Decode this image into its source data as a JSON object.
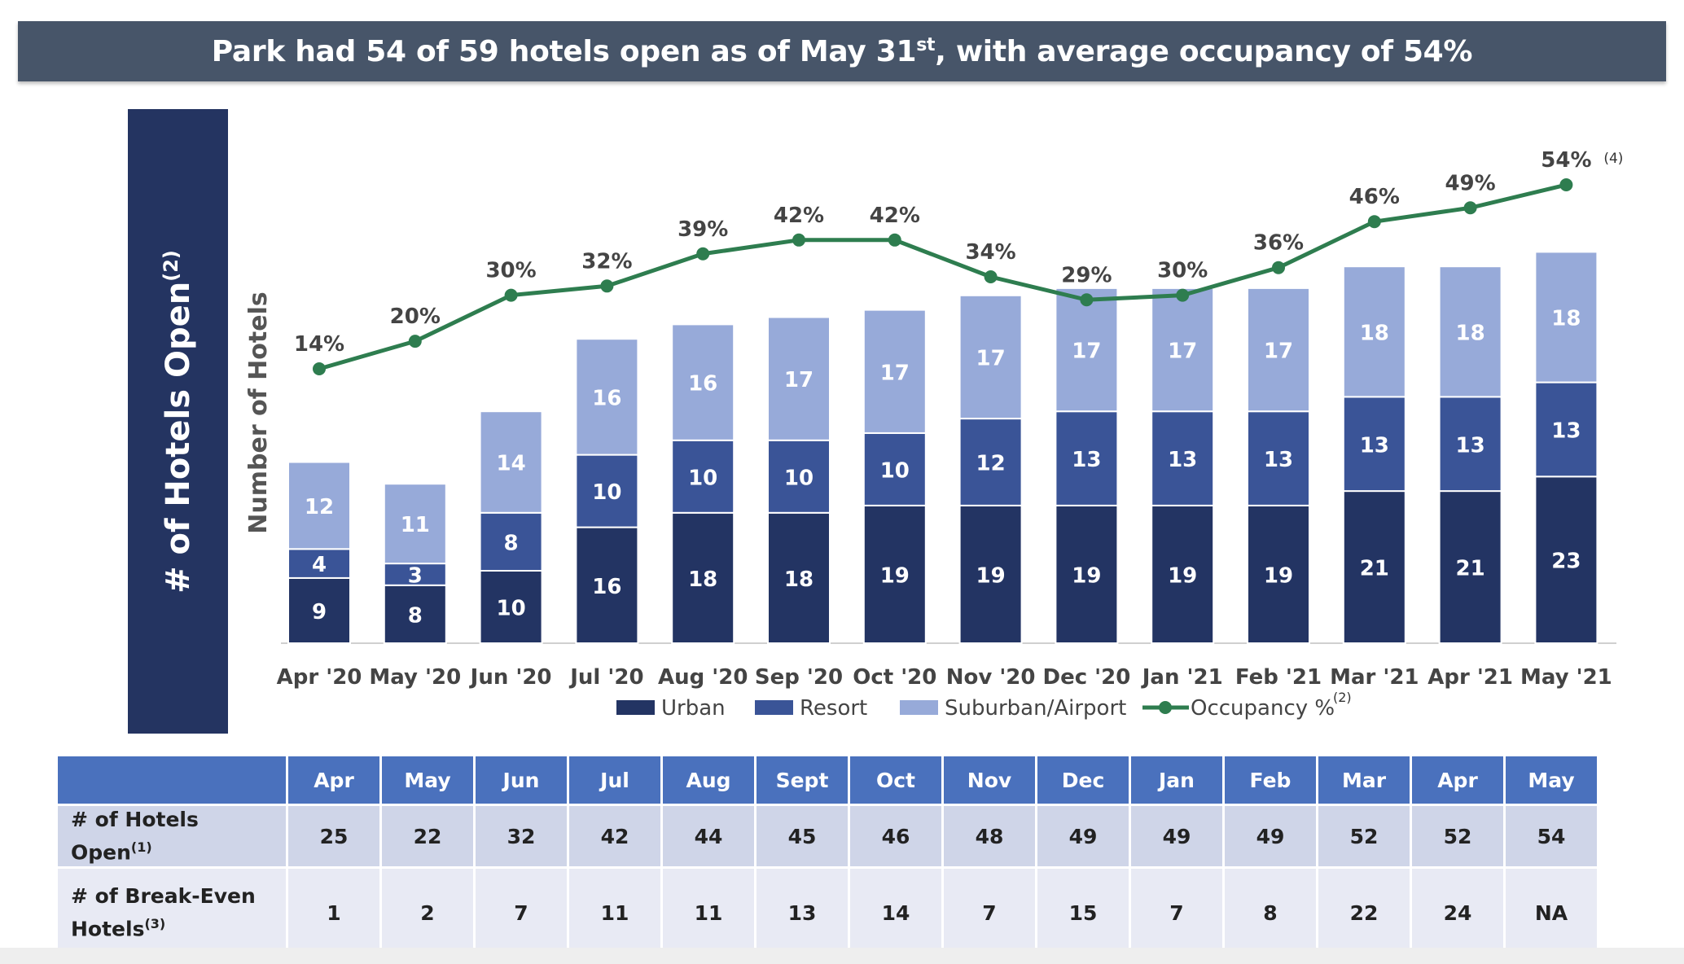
{
  "title": {
    "main": "Park had 54 of 59 hotels open as of May 31",
    "sup": "st",
    "rest": ", with average occupancy of 54%"
  },
  "side_label": {
    "text": "# of Hotels Open",
    "sup": "(2)"
  },
  "chart_data": {
    "type": "bar",
    "stacked": true,
    "ylabel": "Number of Hotels",
    "categories": [
      "Apr '20",
      "May '20",
      "Jun '20",
      "Jul '20",
      "Aug '20",
      "Sep '20",
      "Oct '20",
      "Nov '20",
      "Dec '20",
      "Jan '21",
      "Feb '21",
      "Mar '21",
      "Apr '21",
      "May '21"
    ],
    "series": [
      {
        "name": "Urban",
        "color": "#233463",
        "values": [
          9,
          8,
          10,
          16,
          18,
          18,
          19,
          19,
          19,
          19,
          19,
          21,
          21,
          23
        ]
      },
      {
        "name": "Resort",
        "color": "#3a5497",
        "values": [
          4,
          3,
          8,
          10,
          10,
          10,
          10,
          12,
          13,
          13,
          13,
          13,
          13,
          13
        ]
      },
      {
        "name": "Suburban/Airport",
        "color": "#97aad9",
        "values": [
          12,
          11,
          14,
          16,
          16,
          17,
          17,
          17,
          17,
          17,
          17,
          18,
          18,
          18
        ]
      }
    ],
    "line": {
      "name": "Occupancy %",
      "name_sup": "(2)",
      "color": "#2e7d4f",
      "values": [
        14,
        20,
        30,
        32,
        39,
        42,
        42,
        34,
        29,
        30,
        36,
        46,
        49,
        54
      ],
      "labels": [
        "14%",
        "20%",
        "30%",
        "32%",
        "39%",
        "42%",
        "42%",
        "34%",
        "29%",
        "30%",
        "36%",
        "46%",
        "49%",
        "54%"
      ],
      "last_note": "(4)"
    },
    "legend_position": "bottom",
    "grid": false
  },
  "table": {
    "headers": [
      "Apr",
      "May",
      "Jun",
      "Jul",
      "Aug",
      "Sept",
      "Oct",
      "Nov",
      "Dec",
      "Jan",
      "Feb",
      "Mar",
      "Apr",
      "May"
    ],
    "rows": [
      {
        "label": "# of Hotels Open",
        "label_sup": "(1)",
        "values": [
          "25",
          "22",
          "32",
          "42",
          "44",
          "45",
          "46",
          "48",
          "49",
          "49",
          "49",
          "52",
          "52",
          "54"
        ]
      },
      {
        "label_line1": "# of Break-Even",
        "label_line2": "Hotels",
        "label_sup": "(3)",
        "values": [
          "1",
          "2",
          "7",
          "11",
          "11",
          "13",
          "14",
          "7",
          "15",
          "7",
          "8",
          "22",
          "24",
          "NA"
        ]
      }
    ]
  }
}
